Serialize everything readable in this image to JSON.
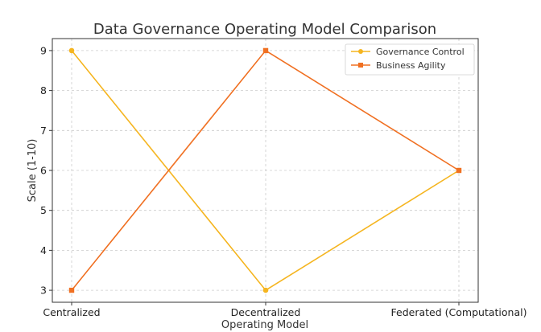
{
  "chart_data": {
    "type": "line",
    "title": "Data Governance Operating Model Comparison",
    "xlabel": "Operating Model",
    "ylabel": "Scale (1-10)",
    "categories": [
      "Centralized",
      "Decentralized",
      "Federated (Computational)"
    ],
    "yticks": [
      3,
      4,
      5,
      6,
      7,
      8,
      9
    ],
    "ylim": [
      2.7,
      9.3
    ],
    "grid": true,
    "legend_position": "top-right",
    "series": [
      {
        "name": "Governance Control",
        "values": [
          9,
          3,
          6
        ],
        "color": "#F5B520",
        "marker": "circle"
      },
      {
        "name": "Business Agility",
        "values": [
          3,
          9,
          6
        ],
        "color": "#F07022",
        "marker": "square"
      }
    ]
  }
}
